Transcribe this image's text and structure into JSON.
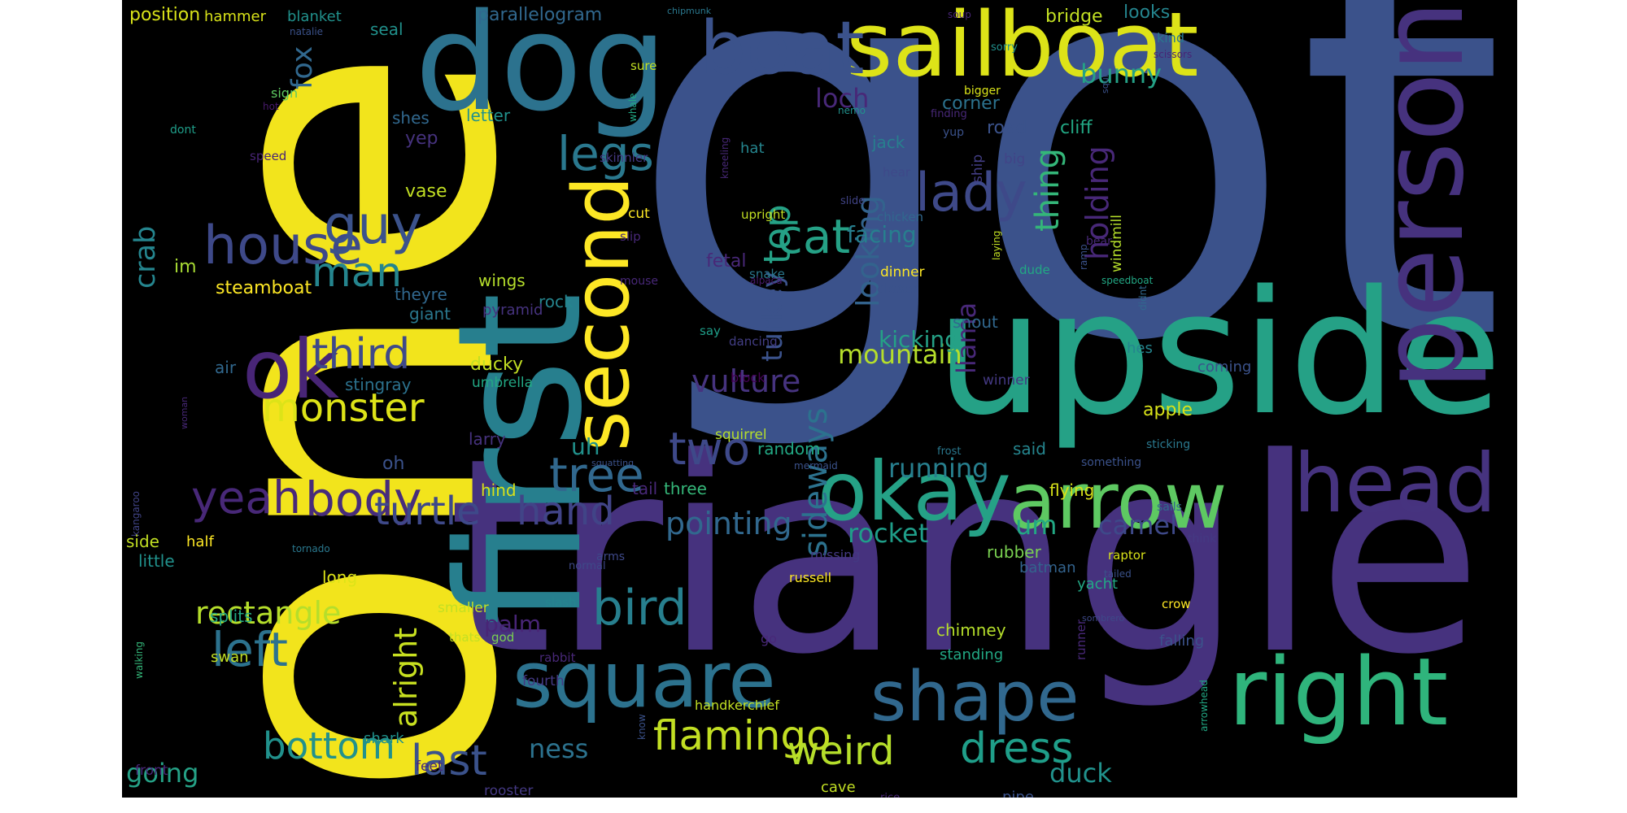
{
  "background": "#000000",
  "palette": {
    "purple": "#482576",
    "indigo": "#414487",
    "blue": "#355f8d",
    "teal": "#2a788e",
    "cyan": "#21918c",
    "green": "#22a884",
    "lime": "#44bf70",
    "lightgreen": "#7ad151",
    "yellow": "#bddf26",
    "bright": "#fde725",
    "darkpurple": "#440154"
  },
  "words": [
    {
      "text": "got",
      "color": "#3b528b",
      "vertical": false
    },
    {
      "text": "one",
      "color": "#f2e41c",
      "vertical": true
    },
    {
      "text": "triangle",
      "color": "#46327e",
      "vertical": false
    },
    {
      "text": "upside",
      "color": "#25a186",
      "vertical": false
    },
    {
      "text": "first",
      "color": "#277f8e",
      "vertical": true
    },
    {
      "text": "dog",
      "color": "#2c728e",
      "vertical": false
    },
    {
      "text": "person",
      "color": "#46327e",
      "vertical": true
    },
    {
      "text": "sailboat",
      "color": "#dde318",
      "vertical": false
    },
    {
      "text": "boat",
      "color": "#3b528b",
      "vertical": false
    },
    {
      "text": "right",
      "color": "#2fb47c",
      "vertical": false
    },
    {
      "text": "head",
      "color": "#46337f",
      "vertical": false
    },
    {
      "text": "okay",
      "color": "#25a186",
      "vertical": false
    },
    {
      "text": "arrow",
      "color": "#5ec962",
      "vertical": false
    },
    {
      "text": "square",
      "color": "#2c728e",
      "vertical": false
    },
    {
      "text": "shape",
      "color": "#31688e",
      "vertical": false
    },
    {
      "text": "second",
      "color": "#fde725",
      "vertical": true
    },
    {
      "text": "ok",
      "color": "#482576",
      "vertical": false
    },
    {
      "text": "house",
      "color": "#3e4989",
      "vertical": false
    },
    {
      "text": "guy",
      "color": "#3b528b",
      "vertical": false
    },
    {
      "text": "lady",
      "color": "#3e4989",
      "vertical": false
    },
    {
      "text": "legs",
      "color": "#2a788e",
      "vertical": false
    },
    {
      "text": "left",
      "color": "#2c728e",
      "vertical": false
    },
    {
      "text": "yeah",
      "color": "#482878",
      "vertical": false
    },
    {
      "text": "body",
      "color": "#472c7a",
      "vertical": false
    },
    {
      "text": "tree",
      "color": "#31688e",
      "vertical": false
    },
    {
      "text": "bird",
      "color": "#277f8e",
      "vertical": false
    },
    {
      "text": "cat",
      "color": "#25a186",
      "vertical": false
    },
    {
      "text": "man",
      "color": "#25858e",
      "vertical": false
    },
    {
      "text": "third",
      "color": "#3e4989",
      "vertical": false
    },
    {
      "text": "monster",
      "color": "#dde318",
      "vertical": false
    },
    {
      "text": "two",
      "color": "#3e4989",
      "vertical": false
    },
    {
      "text": "turtle",
      "color": "#3e4989",
      "vertical": false
    },
    {
      "text": "hand",
      "color": "#414487",
      "vertical": false
    },
    {
      "text": "flamingo",
      "color": "#c2df23",
      "vertical": false
    },
    {
      "text": "weird",
      "color": "#b5de2b",
      "vertical": false
    },
    {
      "text": "dress",
      "color": "#1f9e89",
      "vertical": false
    },
    {
      "text": "last",
      "color": "#3b528b",
      "vertical": false
    },
    {
      "text": "bottom",
      "color": "#21918c",
      "vertical": false
    },
    {
      "text": "rectangle",
      "color": "#b5de2b",
      "vertical": false
    },
    {
      "text": "sideways",
      "color": "#2c728e",
      "vertical": true
    },
    {
      "text": "looking",
      "color": "#33638d",
      "vertical": true
    },
    {
      "text": "turkey",
      "color": "#3b528b",
      "vertical": true
    },
    {
      "text": "top",
      "color": "#25a186",
      "vertical": true
    },
    {
      "text": "holding",
      "color": "#482878",
      "vertical": true
    },
    {
      "text": "thing",
      "color": "#34b679",
      "vertical": true
    },
    {
      "text": "fox",
      "color": "#31688e",
      "vertical": true
    },
    {
      "text": "crab",
      "color": "#25858e",
      "vertical": true
    },
    {
      "text": "alright",
      "color": "#c8e020",
      "vertical": true
    },
    {
      "text": "llama",
      "color": "#482878",
      "vertical": true
    },
    {
      "text": "pointing",
      "color": "#31688e",
      "vertical": false
    },
    {
      "text": "vulture",
      "color": "#46337f",
      "vertical": false
    },
    {
      "text": "mountain",
      "color": "#b5de2b",
      "vertical": false
    },
    {
      "text": "running",
      "color": "#277f8e",
      "vertical": false
    },
    {
      "text": "rocket",
      "color": "#1f9e89",
      "vertical": false
    },
    {
      "text": "um",
      "color": "#22a884",
      "vertical": false
    },
    {
      "text": "bunny",
      "color": "#25a186",
      "vertical": false
    },
    {
      "text": "camel",
      "color": "#3e4989",
      "vertical": false
    },
    {
      "text": "duck",
      "color": "#21918c",
      "vertical": false
    },
    {
      "text": "ness",
      "color": "#2c728e",
      "vertical": false
    },
    {
      "text": "going",
      "color": "#25a186",
      "vertical": false
    },
    {
      "text": "loch",
      "color": "#482878",
      "vertical": false
    },
    {
      "text": "facing",
      "color": "#277f8e",
      "vertical": false
    },
    {
      "text": "kicking",
      "color": "#25a186",
      "vertical": false
    },
    {
      "text": "uh",
      "color": "#21918c",
      "vertical": false
    },
    {
      "text": "palm",
      "color": "#482576",
      "vertical": false
    },
    {
      "text": "steamboat",
      "color": "#fde725",
      "vertical": false
    },
    {
      "text": "position",
      "color": "#d8e219",
      "vertical": false
    },
    {
      "text": "parallelogram",
      "color": "#31688e",
      "vertical": false
    },
    {
      "text": "bridge",
      "color": "#c2df23",
      "vertical": false
    },
    {
      "text": "looks",
      "color": "#25858e",
      "vertical": false
    },
    {
      "text": "corner",
      "color": "#2c728e",
      "vertical": false
    },
    {
      "text": "road",
      "color": "#3b528b",
      "vertical": false
    },
    {
      "text": "cliff",
      "color": "#22a884",
      "vertical": false
    },
    {
      "text": "hammer",
      "color": "#d8e219",
      "vertical": false
    },
    {
      "text": "blanket",
      "color": "#21918c",
      "vertical": false
    },
    {
      "text": "seal",
      "color": "#21918c",
      "vertical": false
    },
    {
      "text": "letter",
      "color": "#21918c",
      "vertical": false
    },
    {
      "text": "shes",
      "color": "#31688e",
      "vertical": false
    },
    {
      "text": "yep",
      "color": "#46327e",
      "vertical": false
    },
    {
      "text": "vase",
      "color": "#c2df23",
      "vertical": false
    },
    {
      "text": "jack",
      "color": "#277f8e",
      "vertical": false
    },
    {
      "text": "hat",
      "color": "#25858e",
      "vertical": false
    },
    {
      "text": "fetal",
      "color": "#482878",
      "vertical": false
    },
    {
      "text": "wings",
      "color": "#b5de2b",
      "vertical": false
    },
    {
      "text": "theyre",
      "color": "#31688e",
      "vertical": false
    },
    {
      "text": "giant",
      "color": "#2a788e",
      "vertical": false
    },
    {
      "text": "rock",
      "color": "#25858e",
      "vertical": false
    },
    {
      "text": "pyramid",
      "color": "#46337f",
      "vertical": false
    },
    {
      "text": "im",
      "color": "#a8db34",
      "vertical": false
    },
    {
      "text": "air",
      "color": "#31688e",
      "vertical": false
    },
    {
      "text": "stingray",
      "color": "#2c728e",
      "vertical": false
    },
    {
      "text": "ducky",
      "color": "#c2df23",
      "vertical": false
    },
    {
      "text": "umbrella",
      "color": "#22a884",
      "vertical": false
    },
    {
      "text": "larry",
      "color": "#46327e",
      "vertical": false
    },
    {
      "text": "oh",
      "color": "#3b528b",
      "vertical": false
    },
    {
      "text": "hind",
      "color": "#d8e219",
      "vertical": false
    },
    {
      "text": "tail",
      "color": "#482878",
      "vertical": false
    },
    {
      "text": "three",
      "color": "#35b779",
      "vertical": false
    },
    {
      "text": "random",
      "color": "#22a884",
      "vertical": false
    },
    {
      "text": "squirrel",
      "color": "#b5de2b",
      "vertical": false
    },
    {
      "text": "said",
      "color": "#25858e",
      "vertical": false
    },
    {
      "text": "flying",
      "color": "#d8e219",
      "vertical": false
    },
    {
      "text": "apple",
      "color": "#d8e219",
      "vertical": false
    },
    {
      "text": "coming",
      "color": "#3b528b",
      "vertical": false
    },
    {
      "text": "hes",
      "color": "#25858e",
      "vertical": false
    },
    {
      "text": "winner",
      "color": "#443983",
      "vertical": false
    },
    {
      "text": "snout",
      "color": "#31688e",
      "vertical": false
    },
    {
      "text": "closer",
      "color": "#3b528b",
      "vertical": false
    },
    {
      "text": "dinner",
      "color": "#fde725",
      "vertical": false
    },
    {
      "text": "chicken",
      "color": "#31688e",
      "vertical": false
    },
    {
      "text": "hear",
      "color": "#3e4989",
      "vertical": false
    },
    {
      "text": "big",
      "color": "#414487",
      "vertical": false
    },
    {
      "text": "ship",
      "color": "#433e85",
      "vertical": true
    },
    {
      "text": "dude",
      "color": "#22a884",
      "vertical": false
    },
    {
      "text": "windmill",
      "color": "#b5de2b",
      "vertical": true
    },
    {
      "text": "upright",
      "color": "#c2df23",
      "vertical": false
    },
    {
      "text": "cut",
      "color": "#fde725",
      "vertical": false
    },
    {
      "text": "skinnier",
      "color": "#443983",
      "vertical": false
    },
    {
      "text": "slip",
      "color": "#482878",
      "vertical": false
    },
    {
      "text": "mouse",
      "color": "#482878",
      "vertical": false
    },
    {
      "text": "snake",
      "color": "#2a788e",
      "vertical": false
    },
    {
      "text": "dancing",
      "color": "#433e85",
      "vertical": false
    },
    {
      "text": "say",
      "color": "#1f9e89",
      "vertical": false
    },
    {
      "text": "block",
      "color": "#440154",
      "vertical": false
    },
    {
      "text": "bear",
      "color": "#482878",
      "vertical": false
    },
    {
      "text": "sure",
      "color": "#c2df23",
      "vertical": false
    },
    {
      "text": "bigger",
      "color": "#d8e219",
      "vertical": false
    },
    {
      "text": "finding",
      "color": "#482878",
      "vertical": false
    },
    {
      "text": "nemo",
      "color": "#21918c",
      "vertical": false
    },
    {
      "text": "whale",
      "color": "#22a884",
      "vertical": true
    },
    {
      "text": "dont",
      "color": "#1f9e89",
      "vertical": false
    },
    {
      "text": "sign",
      "color": "#5ec962",
      "vertical": false
    },
    {
      "text": "hot",
      "color": "#481a6c",
      "vertical": false
    },
    {
      "text": "speed",
      "color": "#482475",
      "vertical": false
    },
    {
      "text": "natalie",
      "color": "#3b528b",
      "vertical": false
    },
    {
      "text": "soup",
      "color": "#482576",
      "vertical": false
    },
    {
      "text": "sorry",
      "color": "#21918c",
      "vertical": false
    },
    {
      "text": "kind",
      "color": "#2a788e",
      "vertical": false
    },
    {
      "text": "scissors",
      "color": "#482475",
      "vertical": false
    },
    {
      "text": "chipmunk",
      "color": "#2a788e",
      "vertical": false
    },
    {
      "text": "squirt",
      "color": "#3b528b",
      "vertical": true
    },
    {
      "text": "yup",
      "color": "#3b528b",
      "vertical": false
    },
    {
      "text": "kneeling",
      "color": "#482878",
      "vertical": true
    },
    {
      "text": "slide",
      "color": "#414487",
      "vertical": false
    },
    {
      "text": "laying",
      "color": "#c2df23",
      "vertical": true
    },
    {
      "text": "alpaca",
      "color": "#481a6c",
      "vertical": false
    },
    {
      "text": "ramp",
      "color": "#3b528b",
      "vertical": true
    },
    {
      "text": "speedboat",
      "color": "#22a884",
      "vertical": false
    },
    {
      "text": "didnt",
      "color": "#31688e",
      "vertical": true
    },
    {
      "text": "sticking",
      "color": "#2a788e",
      "vertical": false
    },
    {
      "text": "something",
      "color": "#3b528b",
      "vertical": false
    },
    {
      "text": "frost",
      "color": "#2a788e",
      "vertical": false
    },
    {
      "text": "mermaid",
      "color": "#3b528b",
      "vertical": false
    },
    {
      "text": "squatting",
      "color": "#3b528b",
      "vertical": false
    },
    {
      "text": "woman",
      "color": "#482878",
      "vertical": true
    },
    {
      "text": "kangaroo",
      "color": "#414487",
      "vertical": true
    },
    {
      "text": "side",
      "color": "#c2df23",
      "vertical": false
    },
    {
      "text": "little",
      "color": "#21918c",
      "vertical": false
    },
    {
      "text": "half",
      "color": "#fde725",
      "vertical": false
    },
    {
      "text": "tornado",
      "color": "#2a788e",
      "vertical": false
    },
    {
      "text": "long",
      "color": "#dde318",
      "vertical": false
    },
    {
      "text": "splits",
      "color": "#22a884",
      "vertical": false
    },
    {
      "text": "swan",
      "color": "#c2df23",
      "vertical": false
    },
    {
      "text": "walking",
      "color": "#34b679",
      "vertical": true
    },
    {
      "text": "front",
      "color": "#482576",
      "vertical": false
    },
    {
      "text": "shark",
      "color": "#21918c",
      "vertical": false
    },
    {
      "text": "feet",
      "color": "#482878",
      "vertical": false
    },
    {
      "text": "rooster",
      "color": "#443983",
      "vertical": false
    },
    {
      "text": "christmas",
      "color": "#414487",
      "vertical": false
    },
    {
      "text": "straight",
      "color": "#2a788e",
      "vertical": false
    },
    {
      "text": "cave",
      "color": "#c2df23",
      "vertical": false
    },
    {
      "text": "rice",
      "color": "#482576",
      "vertical": false
    },
    {
      "text": "pipe",
      "color": "#3b528b",
      "vertical": false
    },
    {
      "text": "smaller",
      "color": "#c2df23",
      "vertical": false
    },
    {
      "text": "thats",
      "color": "#c2df23",
      "vertical": false
    },
    {
      "text": "god",
      "color": "#7ad151",
      "vertical": false
    },
    {
      "text": "slash",
      "color": "#25858e",
      "vertical": false
    },
    {
      "text": "rabbit",
      "color": "#482878",
      "vertical": false
    },
    {
      "text": "fourth",
      "color": "#443983",
      "vertical": false
    },
    {
      "text": "normal",
      "color": "#3e4989",
      "vertical": false
    },
    {
      "text": "arms",
      "color": "#3e4989",
      "vertical": false
    },
    {
      "text": "know",
      "color": "#3b528b",
      "vertical": true
    },
    {
      "text": "handkerchief",
      "color": "#c2df23",
      "vertical": false
    },
    {
      "text": "russell",
      "color": "#fde725",
      "vertical": false
    },
    {
      "text": "go",
      "color": "#482878",
      "vertical": false
    },
    {
      "text": "missing",
      "color": "#443983",
      "vertical": false
    },
    {
      "text": "rubber",
      "color": "#7ad151",
      "vertical": false
    },
    {
      "text": "batman",
      "color": "#33638d",
      "vertical": false
    },
    {
      "text": "chimney",
      "color": "#b5de2b",
      "vertical": false
    },
    {
      "text": "standing",
      "color": "#22a884",
      "vertical": false
    },
    {
      "text": "runner",
      "color": "#482878",
      "vertical": true
    },
    {
      "text": "raptor",
      "color": "#d8e219",
      "vertical": false
    },
    {
      "text": "tailed",
      "color": "#3b528b",
      "vertical": false
    },
    {
      "text": "yacht",
      "color": "#22a884",
      "vertical": false
    },
    {
      "text": "crow",
      "color": "#fde725",
      "vertical": false
    },
    {
      "text": "sombrero",
      "color": "#3e4989",
      "vertical": false
    },
    {
      "text": "falling",
      "color": "#3b528b",
      "vertical": false
    },
    {
      "text": "arrowhead",
      "color": "#22a884",
      "vertical": true
    },
    {
      "text": "sails",
      "color": "#31688e",
      "vertical": false
    },
    {
      "text": "think",
      "color": "#443983",
      "vertical": false
    }
  ]
}
